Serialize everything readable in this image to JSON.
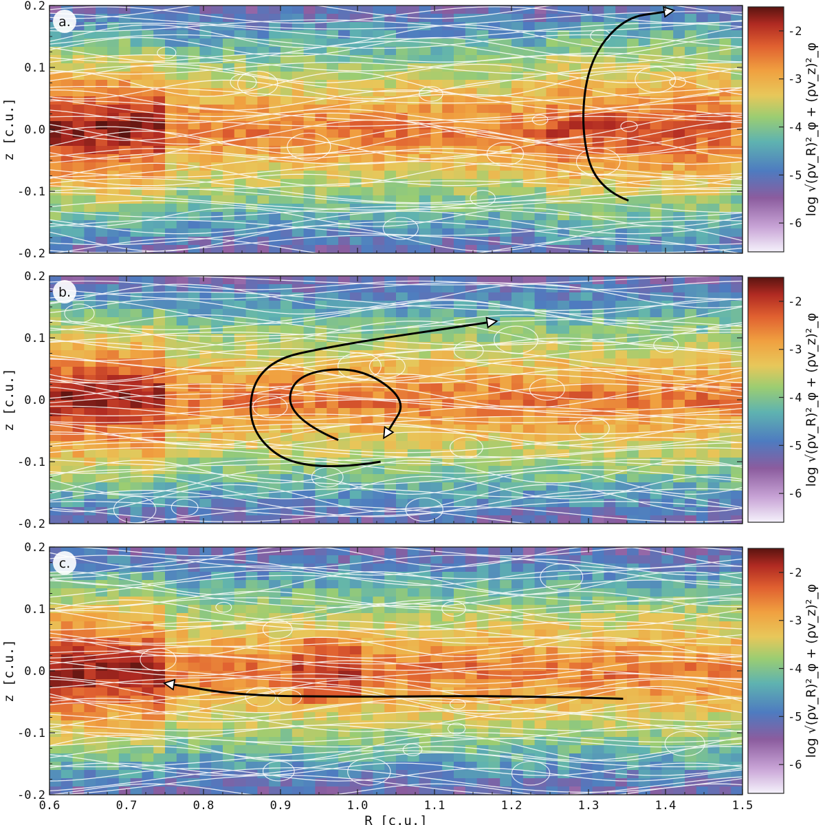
{
  "chart_data": [
    {
      "type": "heatmap",
      "panel": "a.",
      "xlim": [
        0.6,
        1.5
      ],
      "ylim": [
        -0.2,
        0.2
      ],
      "x_ticks": [
        "0.6",
        "0.7",
        "0.8",
        "0.9",
        "1.0",
        "1.1",
        "1.2",
        "1.3",
        "1.4",
        "1.5"
      ],
      "y_ticks": [
        "0.2",
        "0.1",
        "0.0",
        "-0.1",
        "-0.2"
      ],
      "x_ticks_shown": false,
      "ylabel": "z [c.u.]",
      "colorbar": {
        "label": "log √(ρv_R)²_φ + (ρv_z)²_φ",
        "ticks": [
          "-2",
          "-3",
          "-4",
          "-5",
          "-6"
        ],
        "range": [
          -6.6,
          -1.5
        ]
      },
      "overlay": "white streamlines",
      "annotation_arrow": {
        "path": [
          [
            1.352,
            -0.115
          ],
          [
            1.31,
            -0.095
          ],
          [
            1.29,
            0.0
          ],
          [
            1.3,
            0.11
          ],
          [
            1.345,
            0.18
          ],
          [
            1.4,
            0.19
          ]
        ],
        "head": "end"
      }
    },
    {
      "type": "heatmap",
      "panel": "b.",
      "xlim": [
        0.6,
        1.5
      ],
      "ylim": [
        -0.2,
        0.2
      ],
      "x_ticks": [
        "0.6",
        "0.7",
        "0.8",
        "0.9",
        "1.0",
        "1.1",
        "1.2",
        "1.3",
        "1.4",
        "1.5"
      ],
      "y_ticks": [
        "0.2",
        "0.1",
        "0.0",
        "-0.1",
        "-0.2"
      ],
      "x_ticks_shown": false,
      "ylabel": "z [c.u.]",
      "colorbar": {
        "label": "log √(ρv_R)²_φ + (ρv_z)²_φ",
        "ticks": [
          "-2",
          "-3",
          "-4",
          "-5",
          "-6"
        ],
        "range": [
          -6.6,
          -1.5
        ]
      },
      "overlay": "white streamlines",
      "annotation_arrow": {
        "path": [
          [
            0.975,
            -0.065
          ],
          [
            0.91,
            -0.03
          ],
          [
            0.915,
            0.04
          ],
          [
            1.0,
            0.055
          ],
          [
            1.065,
            0.0
          ],
          [
            1.04,
            -0.05
          ]
        ],
        "head": "end",
        "path2": [
          [
            1.03,
            -0.1
          ],
          [
            0.93,
            -0.12
          ],
          [
            0.855,
            -0.05
          ],
          [
            0.87,
            0.06
          ],
          [
            0.98,
            0.09
          ],
          [
            1.17,
            0.125
          ]
        ],
        "head2": "end"
      }
    },
    {
      "type": "heatmap",
      "panel": "c.",
      "xlim": [
        0.6,
        1.5
      ],
      "ylim": [
        -0.2,
        0.2
      ],
      "x_ticks": [
        "0.6",
        "0.7",
        "0.8",
        "0.9",
        "1.0",
        "1.1",
        "1.2",
        "1.3",
        "1.4",
        "1.5"
      ],
      "y_ticks": [
        "0.2",
        "0.1",
        "0.0",
        "-0.1",
        "-0.2"
      ],
      "x_ticks_shown": true,
      "xlabel": "R [c.u.]",
      "ylabel": "z [c.u.]",
      "colorbar": {
        "label": "log √(ρv_R)²_φ + (ρv_z)²_φ",
        "ticks": [
          "-2",
          "-3",
          "-4",
          "-5",
          "-6"
        ],
        "range": [
          -6.6,
          -1.5
        ]
      },
      "overlay": "white streamlines",
      "annotation_arrow": {
        "path": [
          [
            1.345,
            -0.045
          ],
          [
            1.2,
            -0.04
          ],
          [
            1.0,
            -0.042
          ],
          [
            0.85,
            -0.04
          ],
          [
            0.76,
            -0.022
          ]
        ],
        "head": "end"
      }
    }
  ],
  "colors": {
    "colormap": [
      "#f5f2fb",
      "#c9a5d7",
      "#8b5c9e",
      "#4e7bc0",
      "#5fb3b0",
      "#9bcd72",
      "#e8c75a",
      "#f0a040",
      "#e06030",
      "#b02a22",
      "#5a1410"
    ],
    "streamline": "#ffffff",
    "arrow": "#000000"
  }
}
